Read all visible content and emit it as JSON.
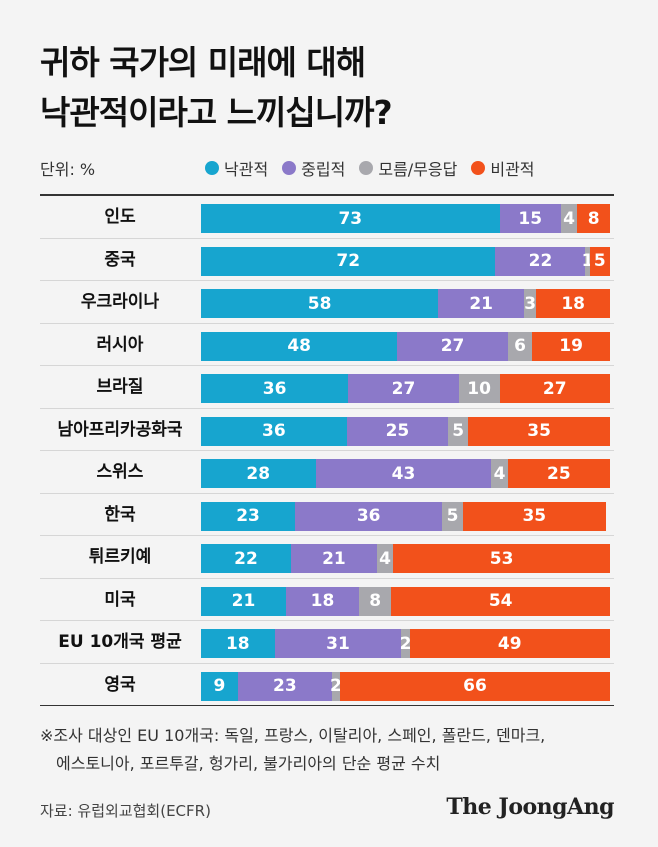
{
  "title_line1": "귀하 국가의 미래에 대해",
  "title_line2": "낙관적이라고 느끼십니까?",
  "unit": "단위: %",
  "chart_data": {
    "type": "bar",
    "orientation": "horizontal",
    "stacked": true,
    "categories": [
      "인도",
      "중국",
      "우크라이나",
      "러시아",
      "브라질",
      "남아프리카공화국",
      "스위스",
      "한국",
      "튀르키예",
      "미국",
      "EU 10개국 평균",
      "영국"
    ],
    "series": [
      {
        "name": "낙관적",
        "color": "#17a5cf",
        "values": [
          73,
          72,
          58,
          48,
          36,
          36,
          28,
          23,
          22,
          21,
          18,
          9
        ]
      },
      {
        "name": "중립적",
        "color": "#8b79c9",
        "values": [
          15,
          22,
          21,
          27,
          27,
          25,
          43,
          36,
          21,
          18,
          31,
          23
        ]
      },
      {
        "name": "모름/무응답",
        "color": "#a8a8ad",
        "values": [
          4,
          1,
          3,
          6,
          10,
          5,
          4,
          5,
          4,
          8,
          2,
          2
        ]
      },
      {
        "name": "비관적",
        "color": "#f2511b",
        "values": [
          8,
          5,
          18,
          19,
          27,
          35,
          25,
          35,
          53,
          54,
          49,
          66
        ]
      }
    ],
    "xlim": [
      0,
      100
    ]
  },
  "footnote_line1": "※조사 대상인 EU 10개국: 독일, 프랑스, 이탈리아, 스페인, 폴란드, 덴마크,",
  "footnote_line2": "에스토니아, 포르투갈, 헝가리, 불가리아의 단순 평균 수치",
  "source": "자료: 유럽외교협회(ECFR)",
  "brand": "The JoongAng"
}
